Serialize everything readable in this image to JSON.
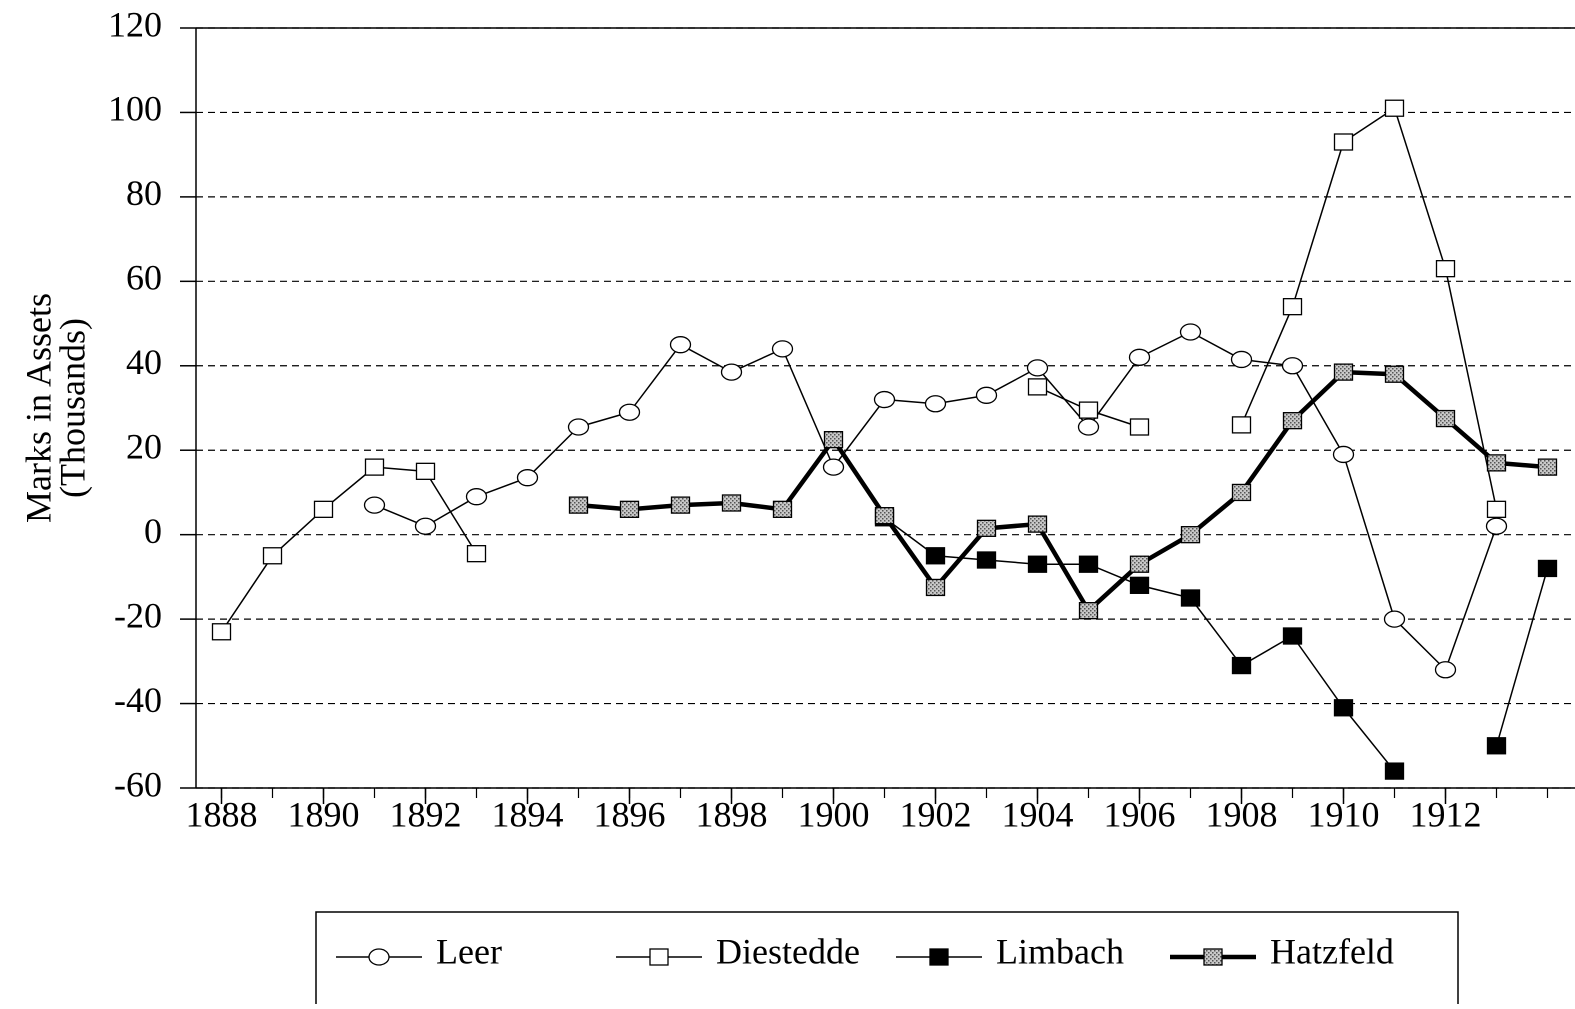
{
  "chart_data": {
    "type": "line",
    "y_label": [
      "Marks in Assets",
      "(Thousands)"
    ],
    "x": [
      1888,
      1889,
      1890,
      1891,
      1892,
      1893,
      1894,
      1895,
      1896,
      1897,
      1898,
      1899,
      1900,
      1901,
      1902,
      1903,
      1904,
      1905,
      1906,
      1907,
      1908,
      1909,
      1910,
      1911,
      1912,
      1913,
      1914
    ],
    "xlim": [
      1887.5,
      1914.5
    ],
    "xticks": [
      1888,
      1890,
      1892,
      1894,
      1896,
      1898,
      1900,
      1902,
      1904,
      1906,
      1908,
      1910,
      1912
    ],
    "ylim": [
      -60,
      120
    ],
    "yticks": [
      -60,
      -40,
      -20,
      0,
      20,
      40,
      60,
      80,
      100,
      120
    ],
    "grid": true,
    "legend": "bottom",
    "series": [
      {
        "name": "Leer",
        "color": "#000000",
        "marker": "circle",
        "line_width": 1.5,
        "values": [
          null,
          null,
          null,
          7,
          2,
          9,
          13.5,
          25.5,
          29,
          45,
          38.5,
          44,
          16,
          32,
          31,
          33,
          39.5,
          25.5,
          42,
          48,
          41.5,
          40,
          19,
          -20,
          -32,
          2,
          null
        ]
      },
      {
        "name": "Diestedde",
        "color": "#000000",
        "marker": "square",
        "line_width": 1.5,
        "values": [
          -23,
          -5,
          6,
          16,
          15,
          -4.5,
          null,
          null,
          null,
          null,
          null,
          null,
          null,
          null,
          null,
          null,
          35,
          29.5,
          25.5,
          null,
          26,
          54,
          93,
          101,
          63,
          6,
          null
        ]
      },
      {
        "name": "Limbach",
        "color": "#000000",
        "marker": "filled-square",
        "line_width": 1.5,
        "values": [
          null,
          null,
          null,
          null,
          null,
          null,
          null,
          null,
          null,
          null,
          null,
          null,
          null,
          4,
          -5,
          -6,
          -7,
          -7,
          -12,
          -15,
          -31,
          -24,
          -41,
          -56,
          null,
          -50,
          -8
        ]
      },
      {
        "name": "Hatzfeld",
        "color": "#000000",
        "marker": "shaded-square",
        "line_width": 4.5,
        "values": [
          null,
          null,
          null,
          null,
          null,
          null,
          null,
          7,
          6,
          7,
          7.5,
          6,
          22.5,
          4.5,
          -12.5,
          1.5,
          2.5,
          -18,
          -7,
          0,
          10,
          27,
          38.5,
          38,
          27.5,
          17,
          16
        ]
      }
    ]
  }
}
